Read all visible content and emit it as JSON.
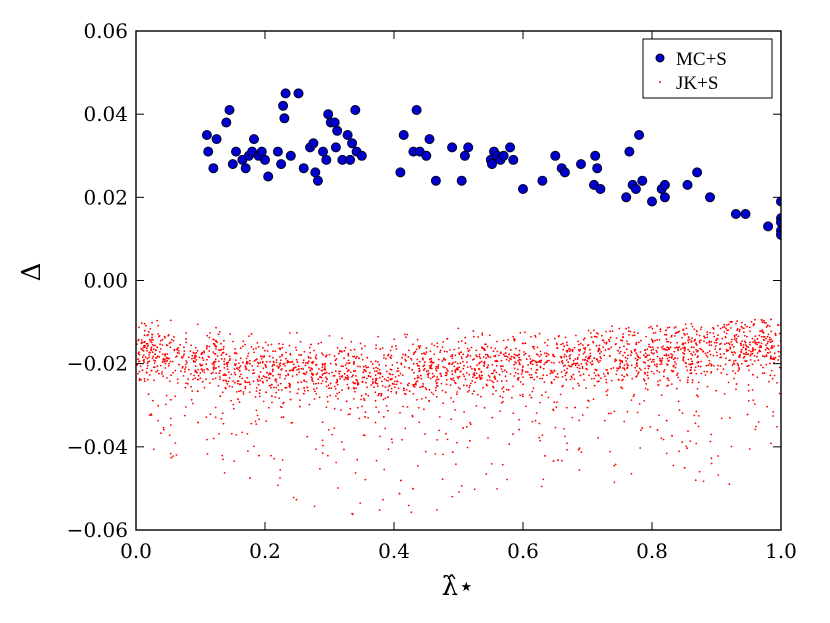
{
  "chart_data": {
    "type": "scatter",
    "title": "",
    "xlabel": "λ̂⋆",
    "ylabel": "Δ",
    "xlim": [
      0.0,
      1.0
    ],
    "ylim": [
      -0.06,
      0.06
    ],
    "xticks": [
      "0.0",
      "0.2",
      "0.4",
      "0.6",
      "0.8",
      "1.0"
    ],
    "yticks": [
      "0.06",
      "0.04",
      "0.02",
      "0.00",
      "−0.02",
      "−0.04",
      "−0.06"
    ],
    "grid": false,
    "legend_position": "top-right",
    "series": [
      {
        "name": "MC+S",
        "color": "#0000cc",
        "marker": "large-circle",
        "points": [
          [
            0.11,
            0.035
          ],
          [
            0.112,
            0.031
          ],
          [
            0.12,
            0.027
          ],
          [
            0.125,
            0.034
          ],
          [
            0.14,
            0.038
          ],
          [
            0.145,
            0.041
          ],
          [
            0.15,
            0.028
          ],
          [
            0.155,
            0.031
          ],
          [
            0.165,
            0.029
          ],
          [
            0.17,
            0.027
          ],
          [
            0.175,
            0.03
          ],
          [
            0.18,
            0.031
          ],
          [
            0.183,
            0.034
          ],
          [
            0.19,
            0.03
          ],
          [
            0.195,
            0.031
          ],
          [
            0.2,
            0.029
          ],
          [
            0.205,
            0.025
          ],
          [
            0.22,
            0.031
          ],
          [
            0.225,
            0.028
          ],
          [
            0.228,
            0.042
          ],
          [
            0.23,
            0.039
          ],
          [
            0.232,
            0.045
          ],
          [
            0.24,
            0.03
          ],
          [
            0.252,
            0.045
          ],
          [
            0.26,
            0.027
          ],
          [
            0.27,
            0.032
          ],
          [
            0.275,
            0.033
          ],
          [
            0.278,
            0.026
          ],
          [
            0.282,
            0.024
          ],
          [
            0.29,
            0.031
          ],
          [
            0.295,
            0.029
          ],
          [
            0.298,
            0.04
          ],
          [
            0.302,
            0.038
          ],
          [
            0.308,
            0.038
          ],
          [
            0.31,
            0.032
          ],
          [
            0.312,
            0.036
          ],
          [
            0.32,
            0.029
          ],
          [
            0.328,
            0.035
          ],
          [
            0.332,
            0.029
          ],
          [
            0.335,
            0.033
          ],
          [
            0.34,
            0.041
          ],
          [
            0.342,
            0.031
          ],
          [
            0.35,
            0.03
          ],
          [
            0.41,
            0.026
          ],
          [
            0.415,
            0.035
          ],
          [
            0.43,
            0.031
          ],
          [
            0.435,
            0.041
          ],
          [
            0.44,
            0.031
          ],
          [
            0.45,
            0.03
          ],
          [
            0.455,
            0.034
          ],
          [
            0.465,
            0.024
          ],
          [
            0.49,
            0.032
          ],
          [
            0.505,
            0.024
          ],
          [
            0.51,
            0.03
          ],
          [
            0.515,
            0.032
          ],
          [
            0.55,
            0.029
          ],
          [
            0.552,
            0.028
          ],
          [
            0.555,
            0.031
          ],
          [
            0.56,
            0.03
          ],
          [
            0.565,
            0.029
          ],
          [
            0.57,
            0.03
          ],
          [
            0.58,
            0.032
          ],
          [
            0.585,
            0.029
          ],
          [
            0.6,
            0.022
          ],
          [
            0.63,
            0.024
          ],
          [
            0.65,
            0.03
          ],
          [
            0.66,
            0.027
          ],
          [
            0.665,
            0.026
          ],
          [
            0.69,
            0.028
          ],
          [
            0.71,
            0.023
          ],
          [
            0.712,
            0.03
          ],
          [
            0.715,
            0.027
          ],
          [
            0.72,
            0.022
          ],
          [
            0.76,
            0.02
          ],
          [
            0.765,
            0.031
          ],
          [
            0.77,
            0.023
          ],
          [
            0.775,
            0.022
          ],
          [
            0.78,
            0.035
          ],
          [
            0.785,
            0.024
          ],
          [
            0.8,
            0.019
          ],
          [
            0.815,
            0.022
          ],
          [
            0.82,
            0.023
          ],
          [
            0.82,
            0.02
          ],
          [
            0.855,
            0.023
          ],
          [
            0.87,
            0.026
          ],
          [
            0.89,
            0.02
          ],
          [
            0.93,
            0.016
          ],
          [
            0.945,
            0.016
          ],
          [
            0.98,
            0.013
          ],
          [
            1.0,
            0.019
          ],
          [
            1.0,
            0.015
          ],
          [
            1.0,
            0.014
          ],
          [
            1.0,
            0.012
          ],
          [
            1.0,
            0.011
          ]
        ]
      },
      {
        "name": "JK+S",
        "color": "#ff0000",
        "marker": "small-dot",
        "approx_point_count": 3000,
        "trend": {
          "x": [
            0.0,
            0.1,
            0.2,
            0.3,
            0.4,
            0.5,
            0.6,
            0.7,
            0.8,
            0.9,
            1.0
          ],
          "y_mean": [
            -0.016,
            -0.019,
            -0.021,
            -0.022,
            -0.022,
            -0.021,
            -0.02,
            -0.019,
            -0.018,
            -0.016,
            -0.015
          ],
          "y_max": [
            -0.009,
            -0.01,
            -0.012,
            -0.012,
            -0.012,
            -0.011,
            -0.011,
            -0.011,
            -0.011,
            -0.01,
            -0.009
          ],
          "y_min": [
            -0.04,
            -0.045,
            -0.05,
            -0.057,
            -0.058,
            -0.055,
            -0.05,
            -0.05,
            -0.05,
            -0.055,
            -0.04
          ]
        }
      }
    ]
  }
}
